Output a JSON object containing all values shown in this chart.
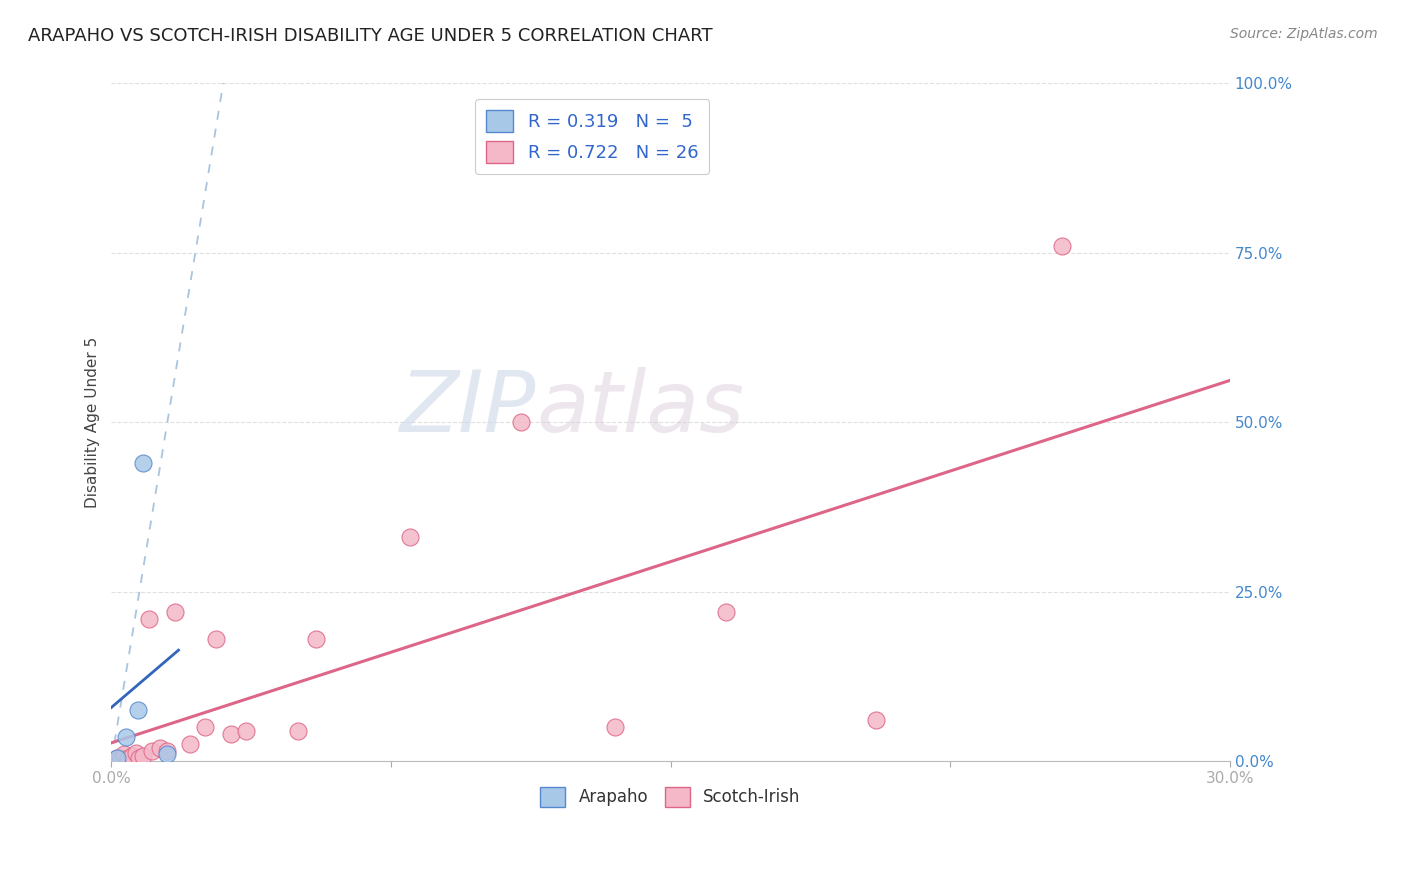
{
  "title": "ARAPAHO VS SCOTCH-IRISH DISABILITY AGE UNDER 5 CORRELATION CHART",
  "source": "Source: ZipAtlas.com",
  "ylabel": "Disability Age Under 5",
  "xlabel": "",
  "xlim": [
    0.0,
    30.0
  ],
  "ylim": [
    0.0,
    100.0
  ],
  "watermark_zip": "ZIP",
  "watermark_atlas": "atlas",
  "arapaho_color": "#a8c8e8",
  "arapaho_edge_color": "#5588cc",
  "arapaho_line_color": "#3366bb",
  "scotch_irish_color": "#f4b8c8",
  "scotch_irish_edge_color": "#dd6688",
  "scotch_irish_line_color": "#dd6688",
  "arapaho_R": 0.319,
  "arapaho_N": 5,
  "scotch_irish_R": 0.722,
  "scotch_irish_N": 26,
  "background_color": "#ffffff",
  "grid_color": "#e0e0e0",
  "title_fontsize": 13,
  "label_fontsize": 11,
  "tick_color": "#4488cc",
  "tick_fontsize": 11,
  "legend_R_color": "#3366cc",
  "legend_fontsize": 13,
  "arapaho_x": [
    0.15,
    0.4,
    0.7,
    0.85,
    1.5
  ],
  "arapaho_y": [
    0.5,
    3.5,
    7.5,
    44.0,
    1.0
  ],
  "scotch_x": [
    0.15,
    0.25,
    0.35,
    0.45,
    0.55,
    0.65,
    0.75,
    0.85,
    1.0,
    1.1,
    1.3,
    1.5,
    1.7,
    2.1,
    2.5,
    2.8,
    3.2,
    3.6,
    5.0,
    5.5,
    8.0,
    11.0,
    13.5,
    16.5,
    20.5,
    25.5
  ],
  "scotch_y": [
    0.5,
    0.5,
    1.0,
    0.5,
    0.8,
    1.2,
    0.5,
    0.8,
    21.0,
    1.5,
    2.0,
    1.5,
    22.0,
    2.5,
    5.0,
    18.0,
    4.0,
    4.5,
    4.5,
    18.0,
    33.0,
    50.0,
    5.0,
    22.0,
    6.0,
    76.0
  ],
  "dashed_x0": 0.0,
  "dashed_y0": 0.0,
  "dashed_x1": 3.0,
  "dashed_y1": 100.0,
  "solid_blue_x0": 0.0,
  "solid_blue_y0": 0.0,
  "solid_blue_x1": 1.5,
  "solid_blue_y1": 25.0
}
